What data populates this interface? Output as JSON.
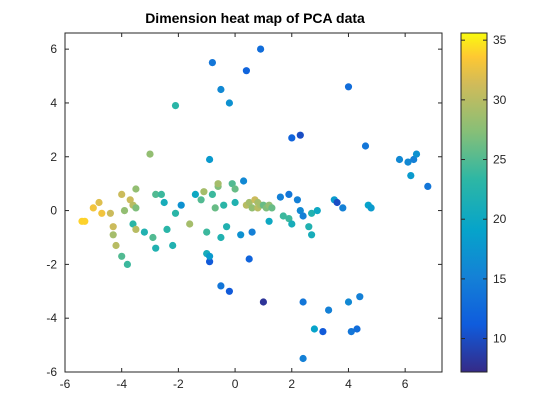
{
  "chart_data": {
    "type": "scatter",
    "title": "Dimension heat map of PCA data",
    "xlabel": "",
    "ylabel": "",
    "xlim": [
      -6,
      7.3
    ],
    "ylim": [
      -6,
      6.6
    ],
    "x_ticks": [
      -6,
      -4,
      -2,
      0,
      2,
      4,
      6
    ],
    "y_ticks": [
      -6,
      -4,
      -2,
      0,
      2,
      4,
      6
    ],
    "grid": false,
    "colormap": "parula",
    "colorbar": {
      "position": "right",
      "range": [
        7.2,
        35.6
      ],
      "ticks": [
        10,
        15,
        20,
        25,
        30,
        35
      ]
    },
    "points": [
      {
        "x": -5.4,
        "y": -0.4,
        "c": 34
      },
      {
        "x": -5.3,
        "y": -0.4,
        "c": 34
      },
      {
        "x": -5.0,
        "y": 0.1,
        "c": 33
      },
      {
        "x": -4.8,
        "y": 0.3,
        "c": 32
      },
      {
        "x": -4.7,
        "y": -0.1,
        "c": 33
      },
      {
        "x": -4.4,
        "y": -0.1,
        "c": 31
      },
      {
        "x": -4.3,
        "y": -0.6,
        "c": 31
      },
      {
        "x": -4.2,
        "y": -1.3,
        "c": 30
      },
      {
        "x": -4.3,
        "y": -0.9,
        "c": 29
      },
      {
        "x": -4.0,
        "y": 0.6,
        "c": 31
      },
      {
        "x": -3.9,
        "y": 0.0,
        "c": 28
      },
      {
        "x": -4.0,
        "y": -1.7,
        "c": 25
      },
      {
        "x": -3.8,
        "y": -2.0,
        "c": 24
      },
      {
        "x": -3.7,
        "y": 0.4,
        "c": 31
      },
      {
        "x": -3.6,
        "y": 0.2,
        "c": 30
      },
      {
        "x": -3.5,
        "y": 0.8,
        "c": 28
      },
      {
        "x": -3.5,
        "y": 0.1,
        "c": 27
      },
      {
        "x": -3.6,
        "y": -0.5,
        "c": 23
      },
      {
        "x": -3.5,
        "y": -0.7,
        "c": 30
      },
      {
        "x": -3.2,
        "y": -0.8,
        "c": 22
      },
      {
        "x": -3.0,
        "y": 2.1,
        "c": 28
      },
      {
        "x": -2.9,
        "y": -1.0,
        "c": 25
      },
      {
        "x": -2.8,
        "y": -1.4,
        "c": 22
      },
      {
        "x": -2.8,
        "y": 0.6,
        "c": 25
      },
      {
        "x": -2.6,
        "y": 0.6,
        "c": 24
      },
      {
        "x": -2.5,
        "y": 0.3,
        "c": 21
      },
      {
        "x": -2.4,
        "y": -0.7,
        "c": 23
      },
      {
        "x": -2.2,
        "y": -1.3,
        "c": 22
      },
      {
        "x": -2.1,
        "y": 3.9,
        "c": 23
      },
      {
        "x": -2.1,
        "y": -0.1,
        "c": 23
      },
      {
        "x": -1.9,
        "y": 0.2,
        "c": 17
      },
      {
        "x": -1.6,
        "y": -0.5,
        "c": 29
      },
      {
        "x": -1.4,
        "y": 0.6,
        "c": 20
      },
      {
        "x": -1.2,
        "y": 0.4,
        "c": 25
      },
      {
        "x": -1.1,
        "y": 0.7,
        "c": 29
      },
      {
        "x": -1.0,
        "y": -0.8,
        "c": 24
      },
      {
        "x": -1.0,
        "y": -1.6,
        "c": 21
      },
      {
        "x": -0.9,
        "y": -1.9,
        "c": 11
      },
      {
        "x": -0.9,
        "y": -1.7,
        "c": 18
      },
      {
        "x": -0.9,
        "y": 1.9,
        "c": 18
      },
      {
        "x": -0.8,
        "y": 5.5,
        "c": 14
      },
      {
        "x": -0.8,
        "y": 0.6,
        "c": 24
      },
      {
        "x": -0.7,
        "y": 0.1,
        "c": 26
      },
      {
        "x": -0.6,
        "y": 0.9,
        "c": 27
      },
      {
        "x": -0.6,
        "y": 1.0,
        "c": 29
      },
      {
        "x": -0.5,
        "y": -1.0,
        "c": 22
      },
      {
        "x": -0.5,
        "y": 4.5,
        "c": 16
      },
      {
        "x": -0.5,
        "y": -2.8,
        "c": 14
      },
      {
        "x": -0.4,
        "y": 0.2,
        "c": 23
      },
      {
        "x": -0.3,
        "y": -0.6,
        "c": 22
      },
      {
        "x": -0.2,
        "y": -3.0,
        "c": 11
      },
      {
        "x": -0.2,
        "y": 4.0,
        "c": 17
      },
      {
        "x": -0.1,
        "y": 1.0,
        "c": 25
      },
      {
        "x": 0.0,
        "y": 0.8,
        "c": 26
      },
      {
        "x": 0.0,
        "y": 0.3,
        "c": 22
      },
      {
        "x": 0.2,
        "y": -0.9,
        "c": 17
      },
      {
        "x": 0.3,
        "y": 1.1,
        "c": 16
      },
      {
        "x": 0.4,
        "y": 0.2,
        "c": 30
      },
      {
        "x": 0.4,
        "y": 5.2,
        "c": 12
      },
      {
        "x": 0.5,
        "y": -1.8,
        "c": 12
      },
      {
        "x": 0.5,
        "y": 0.3,
        "c": 29
      },
      {
        "x": 0.6,
        "y": 0.1,
        "c": 28
      },
      {
        "x": 0.6,
        "y": -0.8,
        "c": 15
      },
      {
        "x": 0.7,
        "y": 0.4,
        "c": 31
      },
      {
        "x": 0.8,
        "y": 0.3,
        "c": 29
      },
      {
        "x": 0.8,
        "y": 0.1,
        "c": 30
      },
      {
        "x": 0.9,
        "y": 6.0,
        "c": 13
      },
      {
        "x": 0.9,
        "y": 0.2,
        "c": 29
      },
      {
        "x": 1.0,
        "y": -3.4,
        "c": 8
      },
      {
        "x": 1.0,
        "y": 0.2,
        "c": 26
      },
      {
        "x": 1.1,
        "y": 0.1,
        "c": 27
      },
      {
        "x": 1.2,
        "y": 0.2,
        "c": 28
      },
      {
        "x": 1.2,
        "y": -0.4,
        "c": 20
      },
      {
        "x": 1.3,
        "y": 0.1,
        "c": 26
      },
      {
        "x": 1.6,
        "y": 0.5,
        "c": 15
      },
      {
        "x": 1.7,
        "y": -0.2,
        "c": 24
      },
      {
        "x": 1.9,
        "y": 0.6,
        "c": 14
      },
      {
        "x": 1.9,
        "y": -0.3,
        "c": 24
      },
      {
        "x": 2.0,
        "y": -0.5,
        "c": 21
      },
      {
        "x": 2.0,
        "y": 2.7,
        "c": 12
      },
      {
        "x": 2.2,
        "y": 0.4,
        "c": 15
      },
      {
        "x": 2.3,
        "y": 2.8,
        "c": 10
      },
      {
        "x": 2.3,
        "y": 0.0,
        "c": 16
      },
      {
        "x": 2.4,
        "y": -0.2,
        "c": 15
      },
      {
        "x": 2.4,
        "y": -5.5,
        "c": 15
      },
      {
        "x": 2.4,
        "y": -3.4,
        "c": 14
      },
      {
        "x": 2.6,
        "y": -0.6,
        "c": 22
      },
      {
        "x": 2.7,
        "y": -0.9,
        "c": 21
      },
      {
        "x": 2.7,
        "y": -0.1,
        "c": 22
      },
      {
        "x": 2.8,
        "y": -4.4,
        "c": 19
      },
      {
        "x": 2.9,
        "y": 0.0,
        "c": 20
      },
      {
        "x": 3.1,
        "y": -4.5,
        "c": 11
      },
      {
        "x": 3.3,
        "y": -3.7,
        "c": 15
      },
      {
        "x": 3.5,
        "y": 0.4,
        "c": 18
      },
      {
        "x": 3.6,
        "y": 0.3,
        "c": 10
      },
      {
        "x": 3.8,
        "y": 0.1,
        "c": 15
      },
      {
        "x": 4.0,
        "y": 4.6,
        "c": 13
      },
      {
        "x": 4.0,
        "y": -3.4,
        "c": 16
      },
      {
        "x": 4.1,
        "y": -4.5,
        "c": 14
      },
      {
        "x": 4.3,
        "y": -4.4,
        "c": 13
      },
      {
        "x": 4.4,
        "y": -3.2,
        "c": 15
      },
      {
        "x": 4.6,
        "y": 2.4,
        "c": 14
      },
      {
        "x": 4.7,
        "y": 0.2,
        "c": 19
      },
      {
        "x": 4.8,
        "y": 0.1,
        "c": 18
      },
      {
        "x": 5.8,
        "y": 1.9,
        "c": 16
      },
      {
        "x": 6.1,
        "y": 1.8,
        "c": 16
      },
      {
        "x": 6.2,
        "y": 1.3,
        "c": 18
      },
      {
        "x": 6.3,
        "y": 1.9,
        "c": 15
      },
      {
        "x": 6.4,
        "y": 2.1,
        "c": 17
      },
      {
        "x": 6.8,
        "y": 0.9,
        "c": 14
      }
    ]
  }
}
